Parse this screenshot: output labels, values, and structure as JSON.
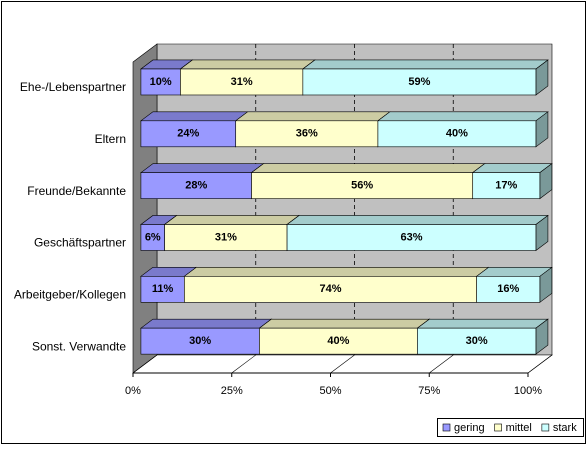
{
  "chart_data": {
    "type": "bar3d_stacked_horizontal",
    "categories": [
      "Ehe-/Lebenspartner",
      "Eltern",
      "Freunde/Bekannte",
      "Geschäftspartner",
      "Arbeitgeber/Kollegen",
      "Sonst. Verwandte"
    ],
    "series": [
      {
        "name": "gering",
        "color": "#9999ff",
        "values": [
          10,
          24,
          28,
          6,
          11,
          30
        ],
        "value_labels": [
          "10%",
          "24%",
          "28%",
          "6%",
          "11%",
          "30%"
        ]
      },
      {
        "name": "mittel",
        "color": "#ffffcc",
        "values": [
          31,
          36,
          56,
          31,
          74,
          40
        ],
        "value_labels": [
          "31%",
          "36%",
          "56%",
          "31%",
          "74%",
          "40%"
        ]
      },
      {
        "name": "stark",
        "color": "#ccffff",
        "values": [
          59,
          40,
          17,
          63,
          16,
          30
        ],
        "value_labels": [
          "59%",
          "40%",
          "17%",
          "63%",
          "16%",
          "30%"
        ]
      }
    ],
    "xlim": [
      0,
      100
    ],
    "xticks": [
      {
        "value": 0,
        "label": "0%"
      },
      {
        "value": 25,
        "label": "25%"
      },
      {
        "value": 50,
        "label": "50%"
      },
      {
        "value": 75,
        "label": "75%"
      },
      {
        "value": 100,
        "label": "100%"
      }
    ],
    "grid": true,
    "legend": "bottom-right"
  }
}
